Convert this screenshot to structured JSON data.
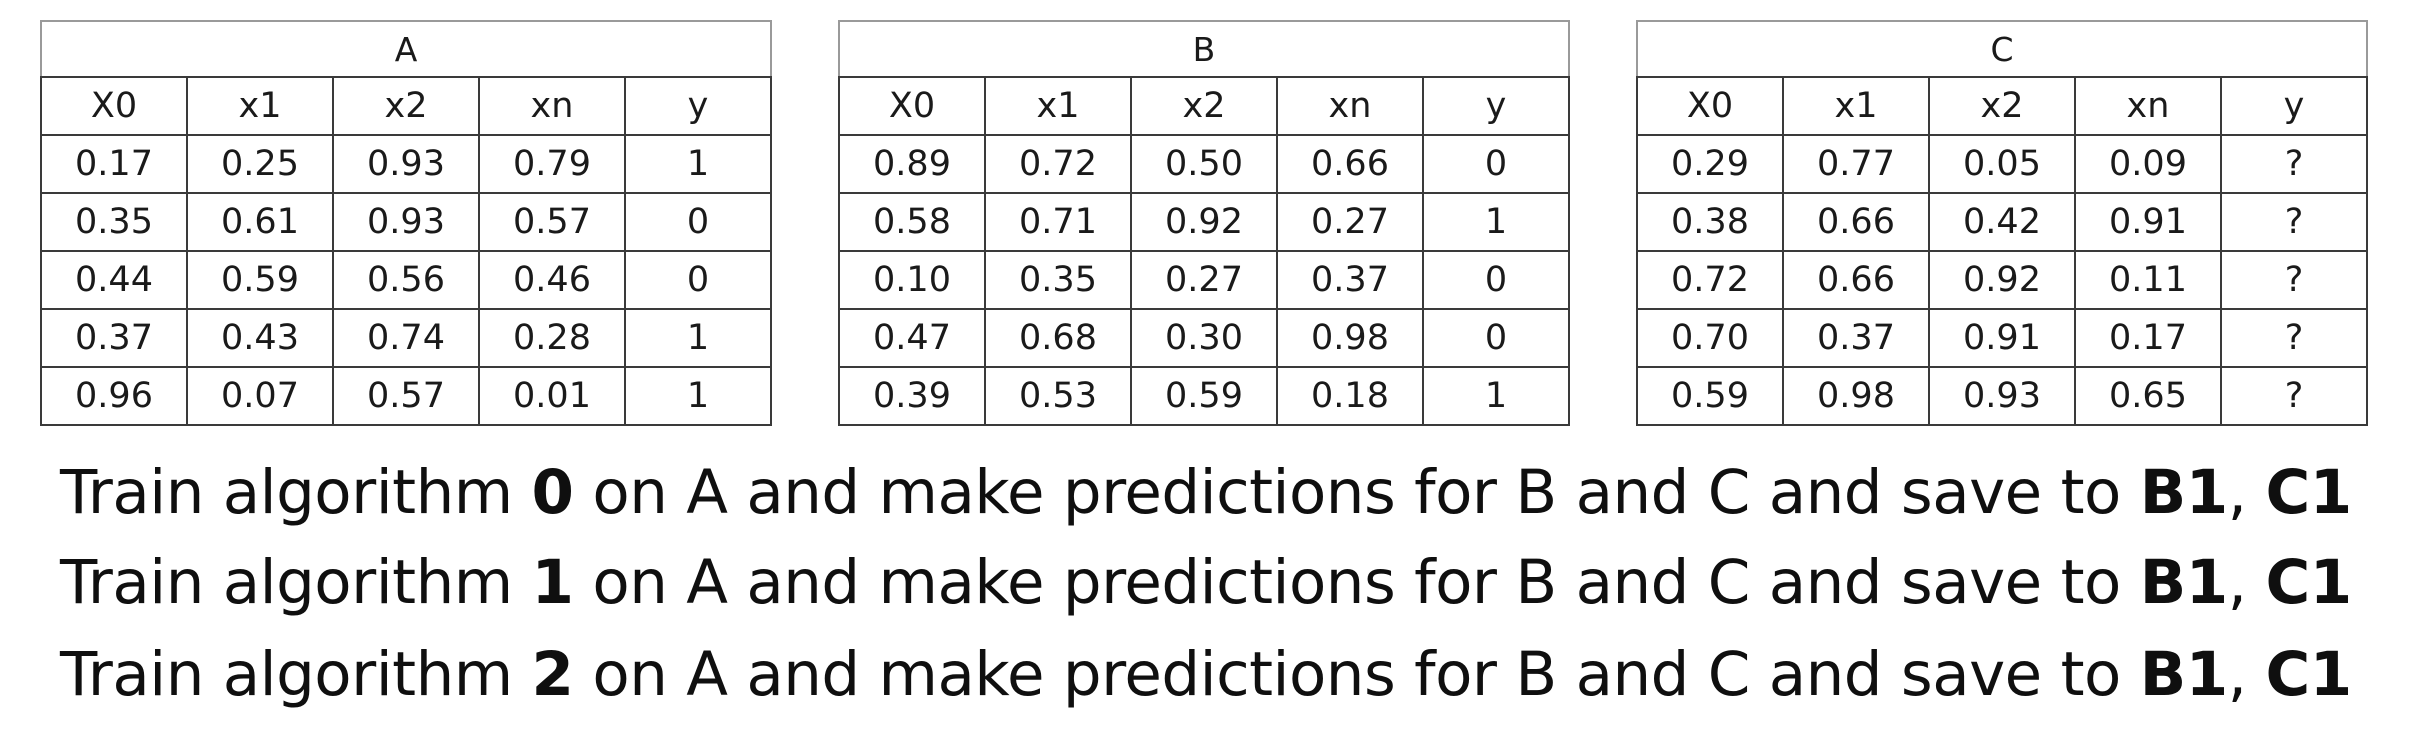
{
  "tables": [
    {
      "title": "A",
      "columns": [
        "X0",
        "x1",
        "x2",
        "xn",
        "y"
      ],
      "rows": [
        [
          "0.17",
          "0.25",
          "0.93",
          "0.79",
          "1"
        ],
        [
          "0.35",
          "0.61",
          "0.93",
          "0.57",
          "0"
        ],
        [
          "0.44",
          "0.59",
          "0.56",
          "0.46",
          "0"
        ],
        [
          "0.37",
          "0.43",
          "0.74",
          "0.28",
          "1"
        ],
        [
          "0.96",
          "0.07",
          "0.57",
          "0.01",
          "1"
        ]
      ]
    },
    {
      "title": "B",
      "columns": [
        "X0",
        "x1",
        "x2",
        "xn",
        "y"
      ],
      "rows": [
        [
          "0.89",
          "0.72",
          "0.50",
          "0.66",
          "0"
        ],
        [
          "0.58",
          "0.71",
          "0.92",
          "0.27",
          "1"
        ],
        [
          "0.10",
          "0.35",
          "0.27",
          "0.37",
          "0"
        ],
        [
          "0.47",
          "0.68",
          "0.30",
          "0.98",
          "0"
        ],
        [
          "0.39",
          "0.53",
          "0.59",
          "0.18",
          "1"
        ]
      ]
    },
    {
      "title": "C",
      "columns": [
        "X0",
        "x1",
        "x2",
        "xn",
        "y"
      ],
      "rows": [
        [
          "0.29",
          "0.77",
          "0.05",
          "0.09",
          "?"
        ],
        [
          "0.38",
          "0.66",
          "0.42",
          "0.91",
          "?"
        ],
        [
          "0.72",
          "0.66",
          "0.92",
          "0.11",
          "?"
        ],
        [
          "0.70",
          "0.37",
          "0.91",
          "0.17",
          "?"
        ],
        [
          "0.59",
          "0.98",
          "0.93",
          "0.65",
          "?"
        ]
      ]
    }
  ],
  "statements": [
    {
      "prefix": "Train algorithm ",
      "algorithm": "0",
      "middle": " on A and make predictions for B and C and save to ",
      "b_target": "B1",
      "separator": ", ",
      "c_target": "C1"
    },
    {
      "prefix": "Train algorithm ",
      "algorithm": "1",
      "middle": " on A and make predictions for B and C and save to ",
      "b_target": "B1",
      "separator": ", ",
      "c_target": "C1"
    },
    {
      "prefix": "Train algorithm ",
      "algorithm": "2",
      "middle": " on A and make predictions for B and C and save to ",
      "b_target": "B1",
      "separator": ", ",
      "c_target": "C1"
    }
  ]
}
